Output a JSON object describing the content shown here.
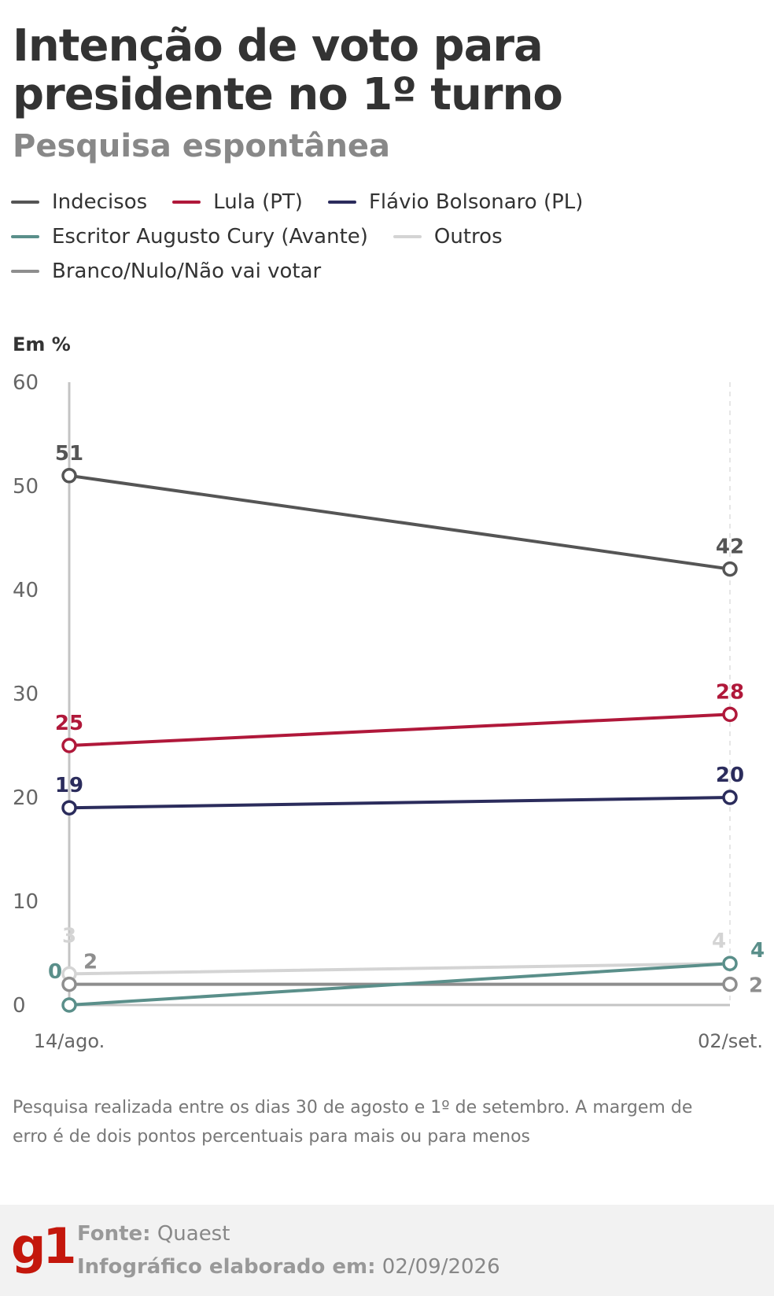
{
  "header": {
    "title": "Intenção de voto para presidente no 1º turno",
    "subtitle": "Pesquisa espontânea"
  },
  "chart_data": {
    "type": "line",
    "unit_label": "Em %",
    "x": [
      "14/ago.",
      "02/set."
    ],
    "ylim": [
      0,
      60
    ],
    "yticks": [
      0,
      10,
      20,
      30,
      40,
      50,
      60
    ],
    "grid": false,
    "legend_position": "top-left",
    "series": [
      {
        "name": "Indecisos",
        "values": [
          51,
          42
        ],
        "color": "#555555"
      },
      {
        "name": "Lula (PT)",
        "values": [
          25,
          28
        ],
        "color": "#b0183a"
      },
      {
        "name": "Flávio Bolsonaro (PL)",
        "values": [
          19,
          20
        ],
        "color": "#2b2c5c"
      },
      {
        "name": "Escritor Augusto Cury (Avante)",
        "values": [
          0,
          4
        ],
        "color": "#5a8f8a"
      },
      {
        "name": "Outros",
        "values": [
          3,
          4
        ],
        "color": "#d4d4d4"
      },
      {
        "name": "Branco/Nulo/Não vai votar",
        "values": [
          2,
          2
        ],
        "color": "#8e8e8e"
      }
    ]
  },
  "note": "Pesquisa realizada entre os dias 30 de agosto e 1º de setembro. A margem de erro é de dois pontos percentuais para mais ou para menos",
  "footer": {
    "logo": "g1",
    "source_label": "Fonte:",
    "source_value": "Quaest",
    "date_label": "Infográfico elaborado em:",
    "date_value": "02/09/2026"
  }
}
